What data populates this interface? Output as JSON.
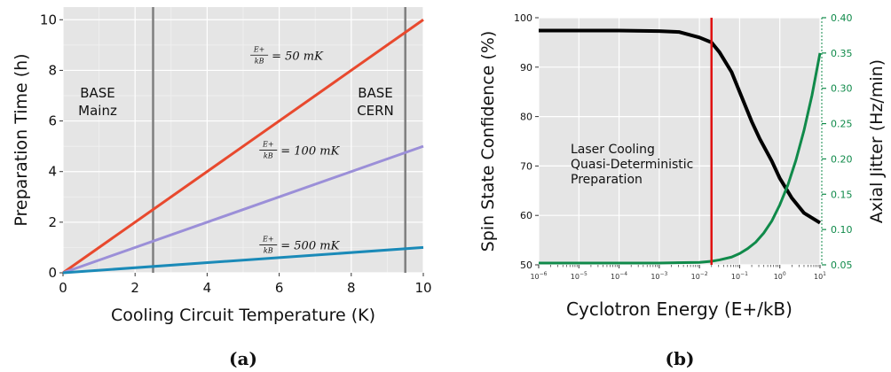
{
  "chart_data": [
    {
      "type": "line",
      "caption": "(a)",
      "xlabel": "Cooling Circuit Temperature (K)",
      "ylabel": "Preparation Time (h)",
      "xlim": [
        0,
        10
      ],
      "ylim": [
        0,
        10.5
      ],
      "xticks": [
        "0",
        "2",
        "4",
        "6",
        "8",
        "10"
      ],
      "yticks": [
        "0",
        "2",
        "4",
        "6",
        "8",
        "10"
      ],
      "grid": true,
      "background": "#e5e5e5",
      "series": [
        {
          "name": "E+/kB = 50 mK",
          "color": "#e8492e",
          "x": [
            0,
            10
          ],
          "y": [
            0,
            10
          ]
        },
        {
          "name": "E+/kB = 100 mK",
          "color": "#9b8fd8",
          "x": [
            0,
            10
          ],
          "y": [
            0,
            5
          ]
        },
        {
          "name": "E+/kB = 500 mK",
          "color": "#1a8ab8",
          "x": [
            0,
            10
          ],
          "y": [
            0,
            1
          ]
        }
      ],
      "vlines": [
        {
          "x": 2.5,
          "color": "#7f7f7f",
          "label_line1": "BASE",
          "label_line2": "Mainz"
        },
        {
          "x": 9.5,
          "color": "#7f7f7f",
          "label_line1": "BASE",
          "label_line2": "CERN"
        }
      ],
      "annotations": [
        {
          "num": "E+",
          "den": "kB",
          "rhs": "= 50 mK",
          "at_x": 5.2,
          "at_y": 8.6
        },
        {
          "num": "E+",
          "den": "kB",
          "rhs": "= 100 mK",
          "at_x": 5.45,
          "at_y": 4.85
        },
        {
          "num": "E+",
          "den": "kB",
          "rhs": "= 500 mK",
          "at_x": 5.45,
          "at_y": 1.1
        }
      ]
    },
    {
      "type": "line",
      "caption": "(b)",
      "xlabel": "Cyclotron Energy (E+/kB)",
      "ylabel": "Spin State Confidence (%)",
      "ylabel_right": "Axial Jitter (Hz/min)",
      "xscale": "log",
      "xlim_log10": [
        -6,
        1
      ],
      "xticks": [
        "10^-6",
        "10^-5",
        "10^-4",
        "10^-3",
        "10^-2",
        "10^-1",
        "10^0",
        "10^1"
      ],
      "ylim": [
        50,
        100
      ],
      "yticks": [
        "50",
        "60",
        "70",
        "80",
        "90",
        "100"
      ],
      "ylim_right": [
        0.05,
        0.4
      ],
      "yticks_right": [
        "0.05",
        "0.10",
        "0.15",
        "0.20",
        "0.25",
        "0.30",
        "0.35",
        "0.40"
      ],
      "right_axis_color": "#108a4a",
      "grid": true,
      "background": "#e5e5e5",
      "series": [
        {
          "name": "Spin State Confidence",
          "color": "#000000",
          "axis": "left",
          "log10x": [
            -6,
            -4,
            -3,
            -2.5,
            -2,
            -1.7,
            -1.5,
            -1.2,
            -1,
            -0.7,
            -0.5,
            -0.2,
            0,
            0.3,
            0.6,
            1
          ],
          "y": [
            97.4,
            97.4,
            97.3,
            97.1,
            96.0,
            95.0,
            93.0,
            89.0,
            85.0,
            79.0,
            75.5,
            71.0,
            67.5,
            63.5,
            60.5,
            58.5
          ]
        },
        {
          "name": "Axial Jitter",
          "color": "#108a4a",
          "axis": "right",
          "log10x": [
            -6,
            -3,
            -2,
            -1.7,
            -1.5,
            -1.2,
            -1,
            -0.8,
            -0.6,
            -0.4,
            -0.2,
            0,
            0.2,
            0.4,
            0.6,
            0.8,
            1
          ],
          "y": [
            0.0525,
            0.0525,
            0.0535,
            0.055,
            0.057,
            0.061,
            0.066,
            0.073,
            0.082,
            0.095,
            0.112,
            0.135,
            0.163,
            0.198,
            0.24,
            0.29,
            0.35
          ]
        }
      ],
      "vlines": [
        {
          "log10x": -1.7,
          "color": "#e01010"
        }
      ],
      "annotation": [
        "Laser Cooling",
        "Quasi-Deterministic",
        "Preparation"
      ]
    }
  ]
}
